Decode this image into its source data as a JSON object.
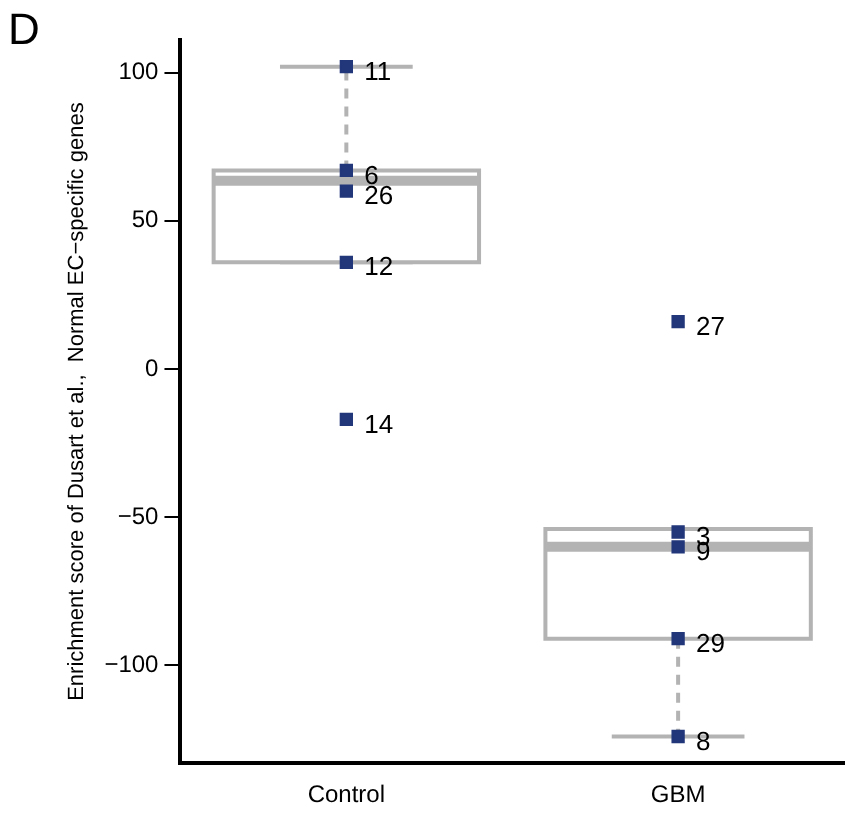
{
  "chart_data": {
    "type": "box",
    "ylabel": "Enrichment score of Dusart et al.,  Normal EC−specific genes",
    "categories": [
      "Control",
      "GBM"
    ],
    "boxes": [
      {
        "low": 36,
        "q1": 36,
        "median": 63.5,
        "q3": 67,
        "high": 102
      },
      {
        "low": -124,
        "q1": -91,
        "median": -60,
        "q3": -54,
        "high": -54
      }
    ],
    "series": [
      {
        "type": "scatter",
        "color": "#22367a",
        "x": [
          "Control",
          "Control",
          "Control",
          "Control",
          "Control",
          "GBM",
          "GBM",
          "GBM",
          "GBM",
          "GBM"
        ],
        "values": [
          102,
          67,
          60,
          36,
          -17,
          16,
          -55,
          -60,
          -91,
          -124
        ]
      }
    ],
    "ylim": [
      -133,
      111
    ],
    "yticks": [
      -100,
      -50,
      0,
      50,
      100
    ],
    "grid": false,
    "legend": false,
    "marker": "square",
    "annotations": [
      "D",
      {
        "text": "11",
        "x": "Control",
        "y": 102
      },
      {
        "text": "6",
        "x": "Control",
        "y": 67
      },
      {
        "text": "26",
        "x": "Control",
        "y": 60
      },
      {
        "text": "12",
        "x": "Control",
        "y": 36
      },
      {
        "text": "14",
        "x": "Control",
        "y": -17
      },
      {
        "text": "27",
        "x": "GBM",
        "y": 16
      },
      {
        "text": "3",
        "x": "GBM",
        "y": -55
      },
      {
        "text": "9",
        "x": "GBM",
        "y": -60
      },
      {
        "text": "29",
        "x": "GBM",
        "y": -91
      },
      {
        "text": "8",
        "x": "GBM",
        "y": -124
      }
    ]
  }
}
